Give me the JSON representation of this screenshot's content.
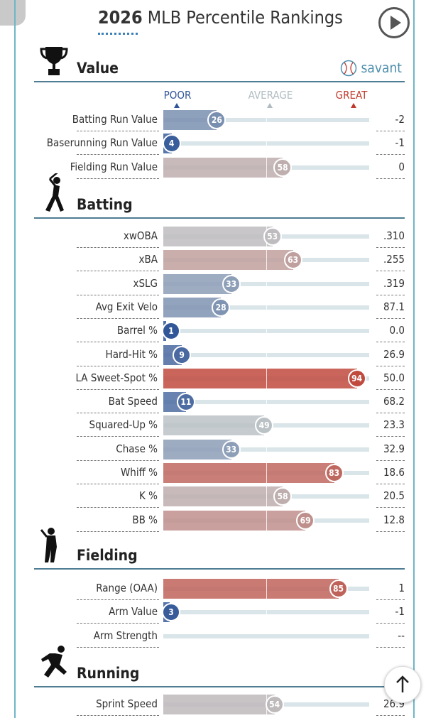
{
  "title_bold": "2026",
  "title_rest": "MLB Percentile Rankings",
  "savant_label": "savant",
  "scale": {
    "poor": "POOR",
    "average": "AVERAGE",
    "great": "GREAT",
    "poor_color": "#2f5597",
    "average_color": "#aab6bb",
    "great_color": "#c0392b"
  },
  "sections": [
    {
      "title": "Value",
      "icon": "trophy-icon"
    },
    {
      "title": "Batting",
      "icon": "batter-icon"
    },
    {
      "title": "Fielding",
      "icon": "fielder-icon"
    },
    {
      "title": "Running",
      "icon": "runner-icon"
    }
  ],
  "chart_data": {
    "type": "bar",
    "xlim": [
      0,
      100
    ],
    "groups": [
      {
        "section": "Value",
        "rows": [
          {
            "label": "Batting Run Value",
            "percentile": 26,
            "value": "-2"
          },
          {
            "label": "Baserunning Run Value",
            "percentile": 4,
            "value": "-1"
          },
          {
            "label": "Fielding Run Value",
            "percentile": 58,
            "value": "0"
          }
        ]
      },
      {
        "section": "Batting",
        "rows": [
          {
            "label": "xwOBA",
            "percentile": 53,
            "value": ".310"
          },
          {
            "label": "xBA",
            "percentile": 63,
            "value": ".255"
          },
          {
            "label": "xSLG",
            "percentile": 33,
            "value": ".319"
          },
          {
            "label": "Avg Exit Velo",
            "percentile": 28,
            "value": "87.1"
          },
          {
            "label": "Barrel %",
            "percentile": 1,
            "value": "0.0"
          },
          {
            "label": "Hard-Hit %",
            "percentile": 9,
            "value": "26.9"
          },
          {
            "label": "LA Sweet-Spot %",
            "percentile": 94,
            "value": "50.0"
          },
          {
            "label": "Bat Speed",
            "percentile": 11,
            "value": "68.2"
          },
          {
            "label": "Squared-Up %",
            "percentile": 49,
            "value": "23.3"
          },
          {
            "label": "Chase %",
            "percentile": 33,
            "value": "32.9"
          },
          {
            "label": "Whiff %",
            "percentile": 83,
            "value": "18.6"
          },
          {
            "label": "K %",
            "percentile": 58,
            "value": "20.5"
          },
          {
            "label": "BB %",
            "percentile": 69,
            "value": "12.8"
          }
        ]
      },
      {
        "section": "Fielding",
        "rows": [
          {
            "label": "Range (OAA)",
            "percentile": 85,
            "value": "1"
          },
          {
            "label": "Arm Value",
            "percentile": 3,
            "value": "-1"
          },
          {
            "label": "Arm Strength",
            "percentile": null,
            "value": "--"
          }
        ]
      },
      {
        "section": "Running",
        "rows": [
          {
            "label": "Sprint Speed",
            "percentile": 54,
            "value": "26.9"
          }
        ]
      }
    ]
  }
}
